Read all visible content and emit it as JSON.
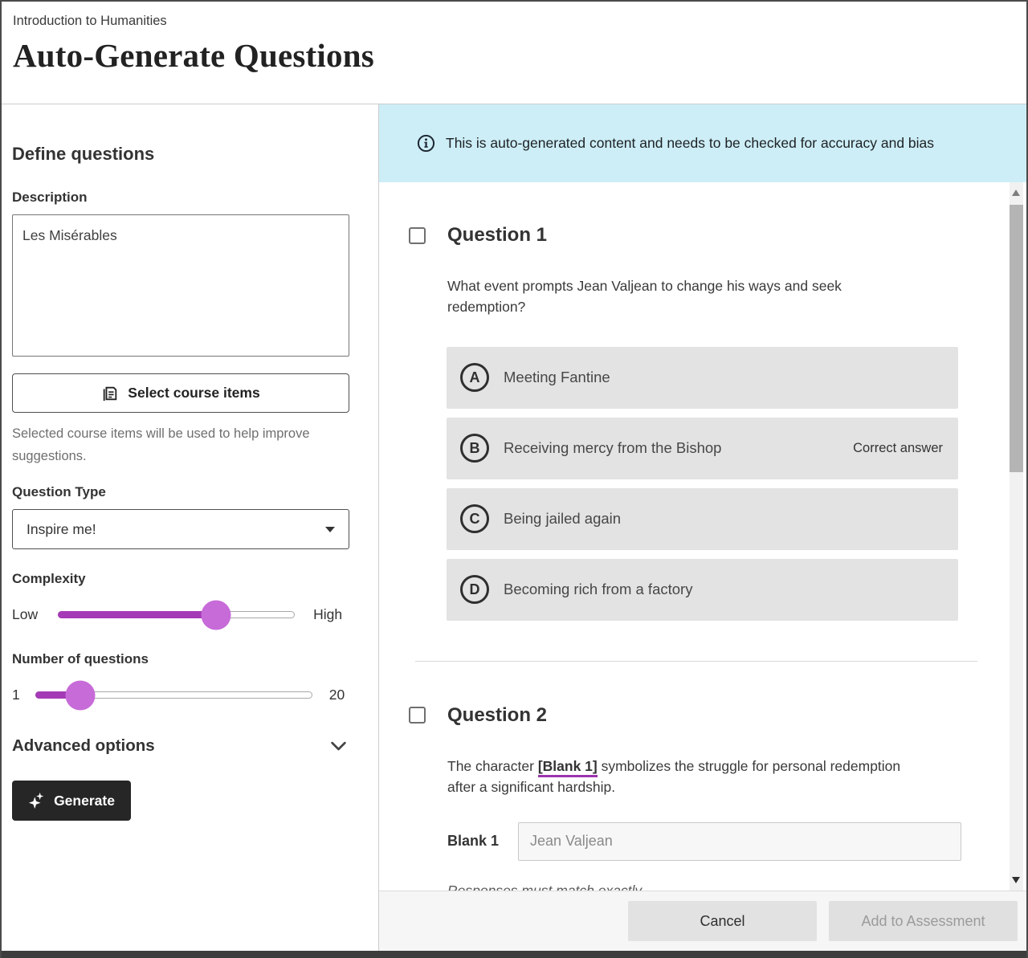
{
  "header": {
    "breadcrumb": "Introduction to Humanities",
    "title": "Auto-Generate Questions"
  },
  "sidebar": {
    "heading": "Define questions",
    "description": {
      "label": "Description",
      "value": "Les Misérables"
    },
    "select_course_items_label": "Select course items",
    "helper_text": "Selected course items will be used to help improve suggestions.",
    "question_type": {
      "label": "Question Type",
      "value": "Inspire me!"
    },
    "complexity": {
      "label": "Complexity",
      "min_label": "Low",
      "max_label": "High",
      "value_percent": 67
    },
    "num_questions": {
      "label": "Number of questions",
      "min_label": "1",
      "max_label": "20",
      "value_percent": 16
    },
    "advanced_options_label": "Advanced options",
    "generate_label": "Generate"
  },
  "banner": {
    "text": "This is auto-generated content and needs to be checked for accuracy and bias"
  },
  "questions": [
    {
      "title": "Question 1",
      "prompt": "What event prompts Jean Valjean to change his ways and seek redemption?",
      "options": [
        {
          "letter": "A",
          "label": "Meeting Fantine"
        },
        {
          "letter": "B",
          "label": "Receiving mercy from the Bishop",
          "badge": "Correct answer"
        },
        {
          "letter": "C",
          "label": "Being jailed again"
        },
        {
          "letter": "D",
          "label": "Becoming rich from a factory"
        }
      ]
    },
    {
      "title": "Question 2",
      "prompt_before": "The character ",
      "prompt_blank": "[Blank 1]",
      "prompt_after": " symbolizes the struggle for personal redemption after a significant hardship.",
      "blank": {
        "label": "Blank 1",
        "value": "Jean Valjean"
      },
      "note": "Responses must match exactly"
    }
  ],
  "footer": {
    "cancel_label": "Cancel",
    "add_label": "Add to Assessment"
  },
  "colors": {
    "accent_purple": "#a53ab6",
    "thumb_purple": "#c76bd8",
    "banner_bg": "#cdeef6",
    "generate_bg": "#262626"
  }
}
